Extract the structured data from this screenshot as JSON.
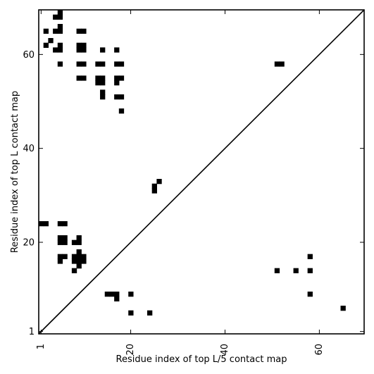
{
  "chart_data": {
    "type": "heatmap",
    "title": "",
    "xlabel": "Residue index of top L/5 contact map",
    "ylabel": "Residue index of top L contact map",
    "xlim": [
      0.5,
      69.5
    ],
    "ylim": [
      0.5,
      69.5
    ],
    "x_ticks": [
      1,
      20,
      40,
      60
    ],
    "y_ticks": [
      1,
      20,
      40,
      60
    ],
    "x_tick_rotation": -90,
    "grid": false,
    "diagonal_line": true,
    "cell_color": "#000000",
    "background_color": "#ffffff",
    "upper_triangle_contacts": [
      [
        5,
        69
      ],
      [
        5,
        68
      ],
      [
        4,
        68
      ],
      [
        2,
        65
      ],
      [
        4,
        65
      ],
      [
        5,
        65
      ],
      [
        9,
        65
      ],
      [
        10,
        65
      ],
      [
        5,
        66
      ],
      [
        3,
        63
      ],
      [
        2,
        62
      ],
      [
        5,
        62
      ],
      [
        9,
        62
      ],
      [
        10,
        62
      ],
      [
        4,
        61
      ],
      [
        5,
        61
      ],
      [
        9,
        61
      ],
      [
        10,
        61
      ],
      [
        14,
        61
      ],
      [
        17,
        61
      ],
      [
        5,
        58
      ],
      [
        9,
        58
      ],
      [
        10,
        58
      ],
      [
        13,
        58
      ],
      [
        14,
        58
      ],
      [
        17,
        58
      ],
      [
        18,
        58
      ],
      [
        51,
        58
      ],
      [
        52,
        58
      ],
      [
        9,
        55
      ],
      [
        10,
        55
      ],
      [
        13,
        55
      ],
      [
        14,
        55
      ],
      [
        17,
        55
      ],
      [
        18,
        55
      ],
      [
        13,
        54
      ],
      [
        14,
        54
      ],
      [
        17,
        54
      ],
      [
        14,
        52
      ],
      [
        14,
        51
      ],
      [
        17,
        51
      ],
      [
        18,
        51
      ],
      [
        18,
        48
      ],
      [
        26,
        33
      ],
      [
        25,
        32
      ],
      [
        25,
        31
      ]
    ],
    "lower_triangle_contacts": [
      [
        1,
        24
      ],
      [
        2,
        24
      ],
      [
        5,
        24
      ],
      [
        6,
        24
      ],
      [
        5,
        21
      ],
      [
        6,
        21
      ],
      [
        9,
        21
      ],
      [
        5,
        20
      ],
      [
        6,
        20
      ],
      [
        8,
        20
      ],
      [
        9,
        20
      ],
      [
        9,
        18
      ],
      [
        5,
        17
      ],
      [
        6,
        17
      ],
      [
        8,
        17
      ],
      [
        9,
        17
      ],
      [
        10,
        17
      ],
      [
        58,
        17
      ],
      [
        5,
        16
      ],
      [
        8,
        16
      ],
      [
        9,
        16
      ],
      [
        10,
        16
      ],
      [
        9,
        15
      ],
      [
        8,
        14
      ],
      [
        51,
        14
      ],
      [
        55,
        14
      ],
      [
        58,
        14
      ],
      [
        15,
        9
      ],
      [
        16,
        9
      ],
      [
        17,
        9
      ],
      [
        20,
        9
      ],
      [
        58,
        9
      ],
      [
        17,
        8
      ],
      [
        20,
        5
      ],
      [
        24,
        5
      ],
      [
        65,
        6
      ]
    ]
  }
}
